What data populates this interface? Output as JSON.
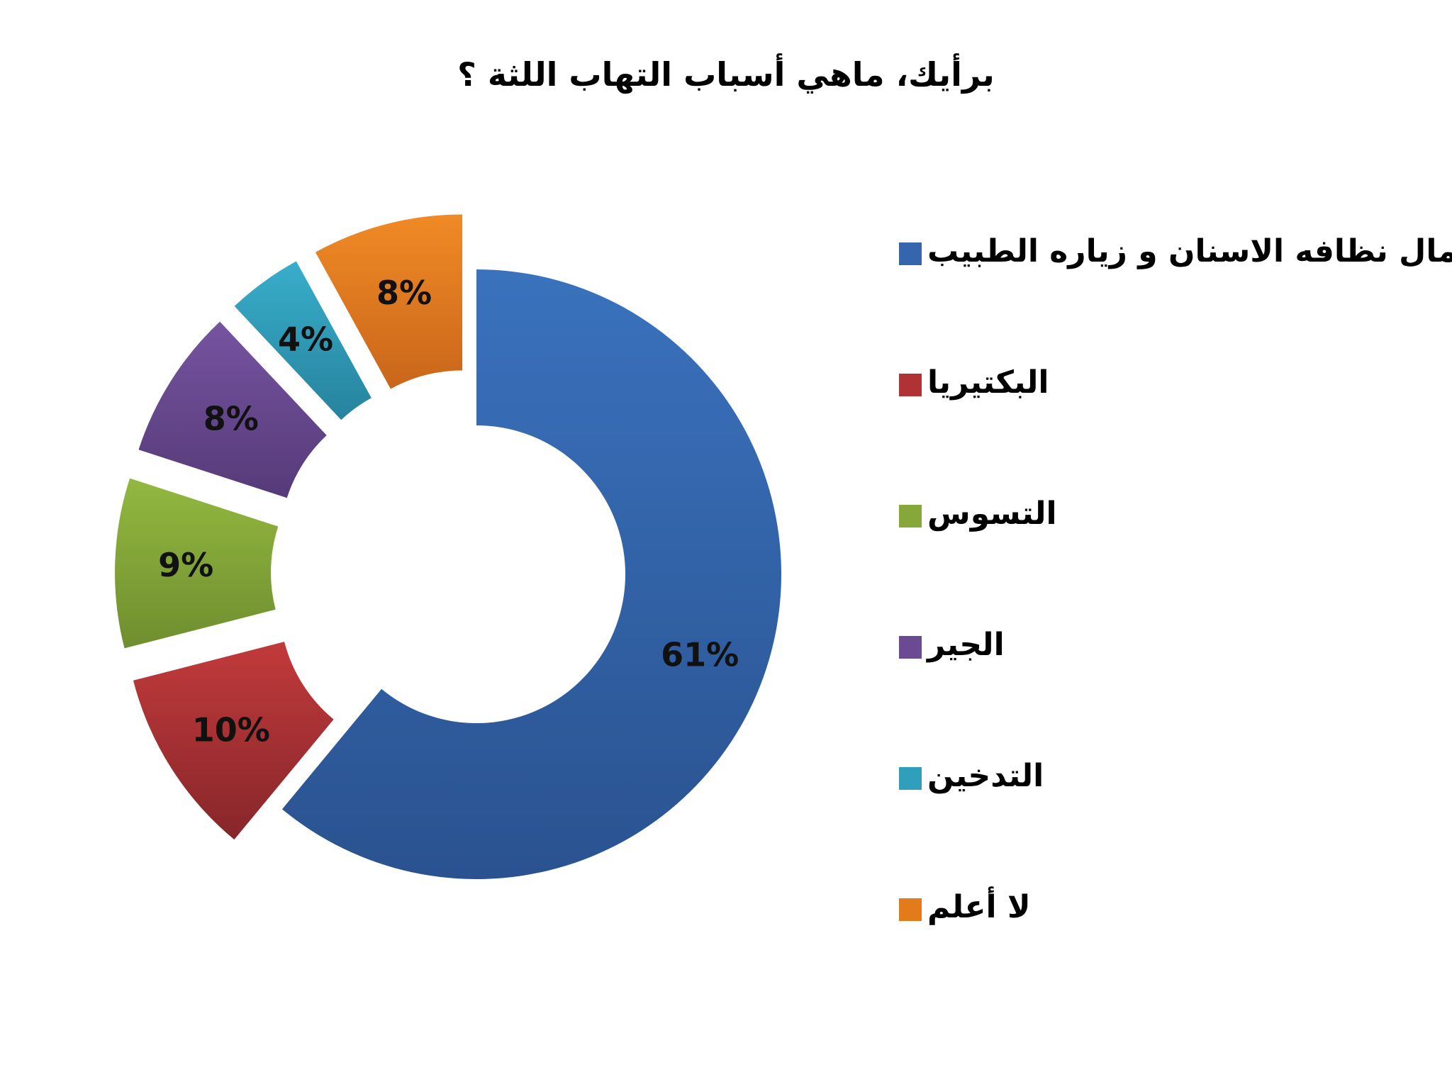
{
  "chart_data": {
    "type": "pie",
    "title": "برأيك، ماهي أسباب التهاب اللثة ؟",
    "legend_position": "right",
    "categories": [
      "اهمال نظافه الاسنان و زياره الطبيب",
      "البكتيريا",
      "التسوس",
      "الجير",
      "التدخين",
      "لا أعلم"
    ],
    "values": [
      61,
      10,
      9,
      8,
      4,
      8
    ],
    "value_labels": [
      "61%",
      "10%",
      "9%",
      "8%",
      "4%",
      "8%"
    ],
    "colors": [
      "#3465ad",
      "#b03234",
      "#86a83a",
      "#6a4a92",
      "#2f9fbc",
      "#e37b1d"
    ]
  }
}
